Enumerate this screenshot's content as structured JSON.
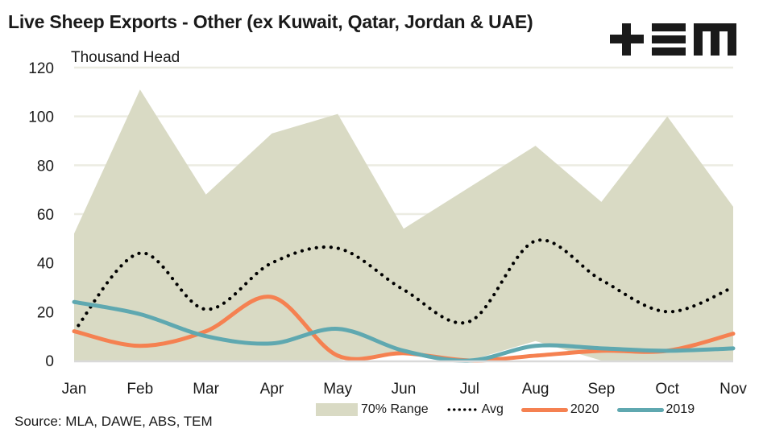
{
  "chart_data": {
    "type": "area",
    "title": "Live Sheep Exports - Other (ex Kuwait, Qatar, Jordan & UAE)",
    "ylabel": "Thousand Head",
    "xlabel": "",
    "ylim": [
      0,
      120
    ],
    "yticks": [
      0,
      20,
      40,
      60,
      80,
      100,
      120
    ],
    "grid": true,
    "legend_position": "bottom",
    "categories": [
      "Jan",
      "Feb",
      "Mar",
      "Apr",
      "May",
      "Jun",
      "Jul",
      "Aug",
      "Sep",
      "Oct",
      "Nov"
    ],
    "range": {
      "name": "70% Range",
      "upper": [
        52,
        111,
        68,
        93,
        101,
        54,
        71,
        88,
        65,
        100,
        63
      ],
      "lower": [
        0,
        0,
        0,
        0,
        0,
        3,
        0,
        8,
        0,
        0,
        0
      ],
      "color": "#d9dac4"
    },
    "series": [
      {
        "name": "Avg",
        "values": [
          12,
          44,
          21,
          40,
          46,
          29,
          16,
          49,
          33,
          20,
          30
        ],
        "color": "#000000",
        "style": "dotted"
      },
      {
        "name": "2020",
        "values": [
          12,
          6,
          12,
          26,
          2,
          3,
          0,
          2,
          4,
          4,
          11
        ],
        "color": "#f58151",
        "style": "solid"
      },
      {
        "name": "2019",
        "values": [
          24,
          19,
          10,
          7,
          13,
          4,
          0,
          6,
          5,
          4,
          5
        ],
        "color": "#5fa8b0",
        "style": "solid"
      }
    ]
  },
  "header": {
    "title": "Live Sheep Exports - Other (ex Kuwait, Qatar, Jordan & UAE)",
    "logo_icon": "tem-logo"
  },
  "legend": {
    "range_label": "70% Range",
    "avg_label": "Avg",
    "s2020_label": "2020",
    "s2019_label": "2019"
  },
  "footer": {
    "source": "Source: MLA, DAWE, ABS, TEM"
  }
}
